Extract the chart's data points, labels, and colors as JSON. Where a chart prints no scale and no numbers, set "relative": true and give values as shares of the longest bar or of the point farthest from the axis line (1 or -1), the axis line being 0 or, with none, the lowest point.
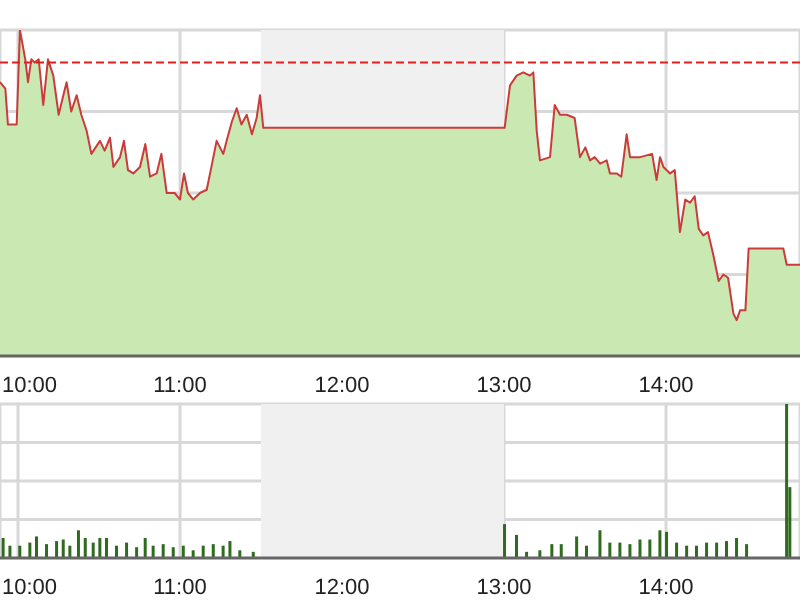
{
  "chart_data": [
    {
      "type": "area",
      "relative": true,
      "grid": true,
      "xlim": [
        9.889,
        14.827
      ],
      "xticks": [
        {
          "value": 10,
          "label": "10:00"
        },
        {
          "value": 11,
          "label": "11:00"
        },
        {
          "value": 12,
          "label": "12:00"
        },
        {
          "value": 13,
          "label": "13:00"
        },
        {
          "value": 14,
          "label": "14:00"
        }
      ],
      "bands": [
        {
          "axis": "x",
          "from": 11.5,
          "to": 13,
          "color": "#f0f0f0"
        }
      ],
      "ref_lines": [
        {
          "axis": "y",
          "value": 0.9,
          "color": "#e02020",
          "line_style": "dashed"
        }
      ],
      "x": [
        9.889,
        9.922,
        9.938,
        9.992,
        10.012,
        10.045,
        10.062,
        10.082,
        10.103,
        10.128,
        10.156,
        10.185,
        10.218,
        10.251,
        10.28,
        10.3,
        10.329,
        10.362,
        10.391,
        10.424,
        10.453,
        10.506,
        10.535,
        10.568,
        10.589,
        10.63,
        10.654,
        10.679,
        10.712,
        10.753,
        10.786,
        10.815,
        10.856,
        10.885,
        10.918,
        10.967,
        11.0,
        11.025,
        11.049,
        11.082,
        11.123,
        11.165,
        11.198,
        11.226,
        11.267,
        11.288,
        11.321,
        11.35,
        11.379,
        11.412,
        11.444,
        11.473,
        11.494,
        11.514,
        13.004,
        13.037,
        13.078,
        13.119,
        13.16,
        13.181,
        13.202,
        13.222,
        13.284,
        13.313,
        13.346,
        13.387,
        13.436,
        13.469,
        13.502,
        13.531,
        13.56,
        13.593,
        13.634,
        13.654,
        13.695,
        13.724,
        13.757,
        13.778,
        13.84,
        13.914,
        13.942,
        13.963,
        13.984,
        14.025,
        14.054,
        14.086,
        14.119,
        14.148,
        14.177,
        14.202,
        14.23,
        14.259,
        14.292,
        14.325,
        14.354,
        14.383,
        14.416,
        14.436,
        14.457,
        14.49,
        14.51,
        14.724,
        14.745,
        14.827
      ],
      "series": [
        {
          "color": "#c9e8b2",
          "values": [
            0.84,
            0.82,
            0.71,
            0.71,
            1.0,
            0.91,
            0.84,
            0.91,
            0.9,
            0.91,
            0.77,
            0.91,
            0.86,
            0.74,
            0.8,
            0.84,
            0.75,
            0.8,
            0.74,
            0.69,
            0.62,
            0.66,
            0.63,
            0.67,
            0.58,
            0.61,
            0.66,
            0.57,
            0.56,
            0.58,
            0.65,
            0.55,
            0.56,
            0.62,
            0.5,
            0.5,
            0.48,
            0.56,
            0.5,
            0.48,
            0.5,
            0.51,
            0.59,
            0.66,
            0.62,
            0.66,
            0.72,
            0.76,
            0.71,
            0.74,
            0.68,
            0.73,
            0.8,
            0.7,
            0.7,
            0.83,
            0.86,
            0.87,
            0.86,
            0.87,
            0.69,
            0.6,
            0.61,
            0.77,
            0.74,
            0.74,
            0.73,
            0.61,
            0.64,
            0.6,
            0.61,
            0.59,
            0.6,
            0.56,
            0.56,
            0.55,
            0.68,
            0.61,
            0.61,
            0.62,
            0.54,
            0.61,
            0.58,
            0.56,
            0.57,
            0.38,
            0.48,
            0.47,
            0.49,
            0.39,
            0.37,
            0.38,
            0.31,
            0.23,
            0.25,
            0.24,
            0.13,
            0.11,
            0.14,
            0.14,
            0.33,
            0.33,
            0.28,
            0.28
          ]
        },
        {
          "type": "line",
          "color": "#cc3b3b",
          "values": [
            0.84,
            0.82,
            0.71,
            0.71,
            1.0,
            0.91,
            0.84,
            0.91,
            0.9,
            0.91,
            0.77,
            0.91,
            0.86,
            0.74,
            0.8,
            0.84,
            0.75,
            0.8,
            0.74,
            0.69,
            0.62,
            0.66,
            0.63,
            0.67,
            0.58,
            0.61,
            0.66,
            0.57,
            0.56,
            0.58,
            0.65,
            0.55,
            0.56,
            0.62,
            0.5,
            0.5,
            0.48,
            0.56,
            0.5,
            0.48,
            0.5,
            0.51,
            0.59,
            0.66,
            0.62,
            0.66,
            0.72,
            0.76,
            0.71,
            0.74,
            0.68,
            0.73,
            0.8,
            0.7,
            0.7,
            0.83,
            0.86,
            0.87,
            0.86,
            0.87,
            0.69,
            0.6,
            0.61,
            0.77,
            0.74,
            0.74,
            0.73,
            0.61,
            0.64,
            0.6,
            0.61,
            0.59,
            0.6,
            0.56,
            0.56,
            0.55,
            0.68,
            0.61,
            0.61,
            0.62,
            0.54,
            0.61,
            0.58,
            0.56,
            0.57,
            0.38,
            0.48,
            0.47,
            0.49,
            0.39,
            0.37,
            0.38,
            0.31,
            0.23,
            0.25,
            0.24,
            0.13,
            0.11,
            0.14,
            0.14,
            0.33,
            0.33,
            0.28,
            0.28
          ]
        }
      ]
    },
    {
      "type": "bar",
      "relative": true,
      "grid": true,
      "xlim": [
        9.889,
        14.827
      ],
      "xticks": [
        {
          "value": 10,
          "label": "10:00"
        },
        {
          "value": 11,
          "label": "11:00"
        },
        {
          "value": 12,
          "label": "12:00"
        },
        {
          "value": 13,
          "label": "13:00"
        },
        {
          "value": 14,
          "label": "14:00"
        }
      ],
      "bands": [
        {
          "axis": "x",
          "from": 11.5,
          "to": 13,
          "color": "#f0f0f0"
        }
      ],
      "x": [
        9.909,
        9.951,
        10.012,
        10.074,
        10.115,
        10.177,
        10.239,
        10.28,
        10.321,
        10.374,
        10.416,
        10.465,
        10.506,
        10.547,
        10.609,
        10.671,
        10.733,
        10.786,
        10.835,
        10.897,
        10.959,
        11.021,
        11.082,
        11.144,
        11.206,
        11.267,
        11.309,
        11.37,
        11.453,
        13.004,
        13.078,
        13.14,
        13.222,
        13.296,
        13.354,
        13.449,
        13.51,
        13.593,
        13.654,
        13.716,
        13.778,
        13.84,
        13.901,
        13.963,
        14.004,
        14.066,
        14.128,
        14.189,
        14.251,
        14.313,
        14.374,
        14.436,
        14.498,
        14.745,
        14.765
      ],
      "series": [
        {
          "color": "#2e6b1e",
          "values": [
            0.13,
            0.08,
            0.08,
            0.1,
            0.14,
            0.09,
            0.11,
            0.12,
            0.08,
            0.18,
            0.13,
            0.1,
            0.13,
            0.13,
            0.08,
            0.1,
            0.07,
            0.13,
            0.08,
            0.09,
            0.07,
            0.08,
            0.05,
            0.08,
            0.09,
            0.08,
            0.11,
            0.05,
            0.04,
            0.22,
            0.15,
            0.04,
            0.05,
            0.09,
            0.09,
            0.14,
            0.08,
            0.18,
            0.1,
            0.1,
            0.09,
            0.12,
            0.12,
            0.18,
            0.17,
            0.1,
            0.08,
            0.08,
            0.1,
            0.1,
            0.11,
            0.13,
            0.09,
            1,
            0.46
          ]
        }
      ]
    }
  ]
}
